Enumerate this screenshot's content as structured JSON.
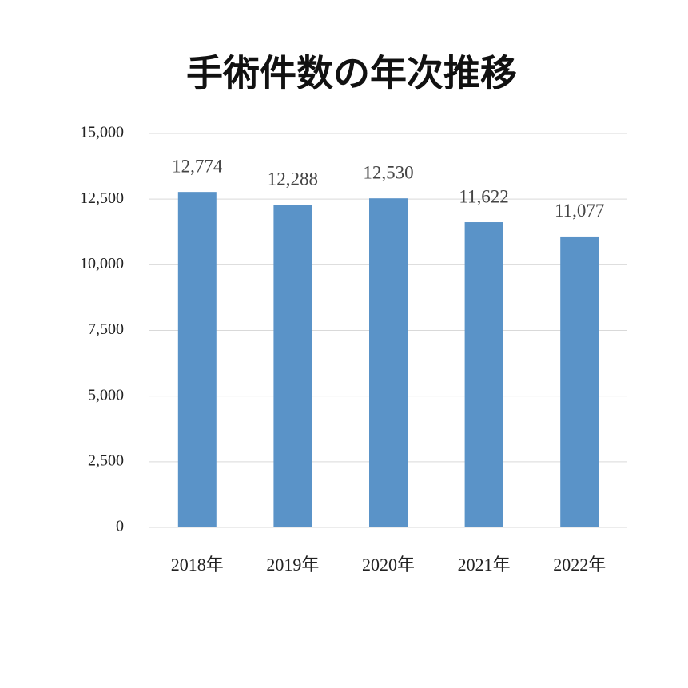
{
  "chart_data": {
    "type": "bar",
    "title": "手術件数の年次推移",
    "categories": [
      "2018年",
      "2019年",
      "2020年",
      "2021年",
      "2022年"
    ],
    "values": [
      12774,
      12288,
      12530,
      11622,
      11077
    ],
    "value_labels": [
      "12,774",
      "12,288",
      "12,530",
      "11,622",
      "11,077"
    ],
    "color": "#5a93c8",
    "ylim": [
      0,
      15000
    ],
    "yticks": [
      0,
      {
        "value": 2500,
        "label": "2,500"
      },
      {
        "value": 5000,
        "label": "5,000"
      },
      {
        "value": 7500,
        "label": "7,500"
      },
      {
        "value": 10000,
        "label": "10,000"
      },
      {
        "value": 12500,
        "label": "12,500"
      },
      {
        "value": 15000,
        "label": "15,000"
      }
    ],
    "grid": true
  }
}
